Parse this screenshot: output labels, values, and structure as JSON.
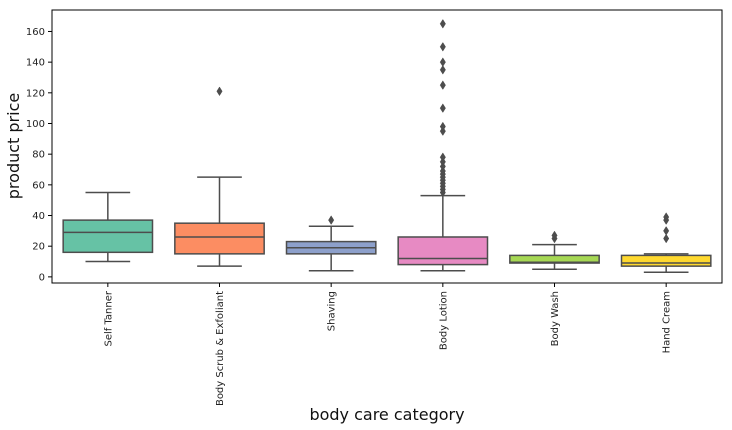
{
  "chart_data": {
    "type": "box",
    "title": "",
    "xlabel": "body care category",
    "ylabel": "product price",
    "ylim": [
      -4,
      174
    ],
    "yticks": [
      0,
      20,
      40,
      60,
      80,
      100,
      120,
      140,
      160
    ],
    "grid": false,
    "categories": [
      "Self Tanner",
      "Body Scrub & Exfoliant",
      "Shaving",
      "Body Lotion",
      "Body Wash",
      "Hand Cream"
    ],
    "boxes": [
      {
        "category": "Self Tanner",
        "color": "#66c2a5",
        "whisker_low": 10,
        "q1": 16,
        "median": 29,
        "q3": 37,
        "whisker_high": 55,
        "outliers": []
      },
      {
        "category": "Body Scrub & Exfoliant",
        "color": "#fc8d62",
        "whisker_low": 7,
        "q1": 15,
        "median": 26,
        "q3": 35,
        "whisker_high": 65,
        "outliers": [
          121
        ]
      },
      {
        "category": "Shaving",
        "color": "#8da0cb",
        "whisker_low": 4,
        "q1": 15,
        "median": 19,
        "q3": 23,
        "whisker_high": 33,
        "outliers": [
          37
        ]
      },
      {
        "category": "Body Lotion",
        "color": "#e78ac3",
        "whisker_low": 4,
        "q1": 8,
        "median": 12,
        "q3": 26,
        "whisker_high": 53,
        "outliers": [
          55,
          57,
          59,
          61,
          63,
          65,
          67,
          69,
          72,
          75,
          78,
          95,
          98,
          110,
          125,
          135,
          140,
          150,
          165
        ]
      },
      {
        "category": "Body Wash",
        "color": "#a6d854",
        "whisker_low": 5,
        "q1": 9,
        "median": 9.5,
        "q3": 14,
        "whisker_high": 21,
        "outliers": [
          25,
          27
        ]
      },
      {
        "category": "Hand Cream",
        "color": "#ffd92f",
        "whisker_low": 3,
        "q1": 7,
        "median": 9,
        "q3": 14,
        "whisker_high": 15,
        "outliers": [
          25,
          30,
          37,
          39
        ]
      }
    ]
  }
}
